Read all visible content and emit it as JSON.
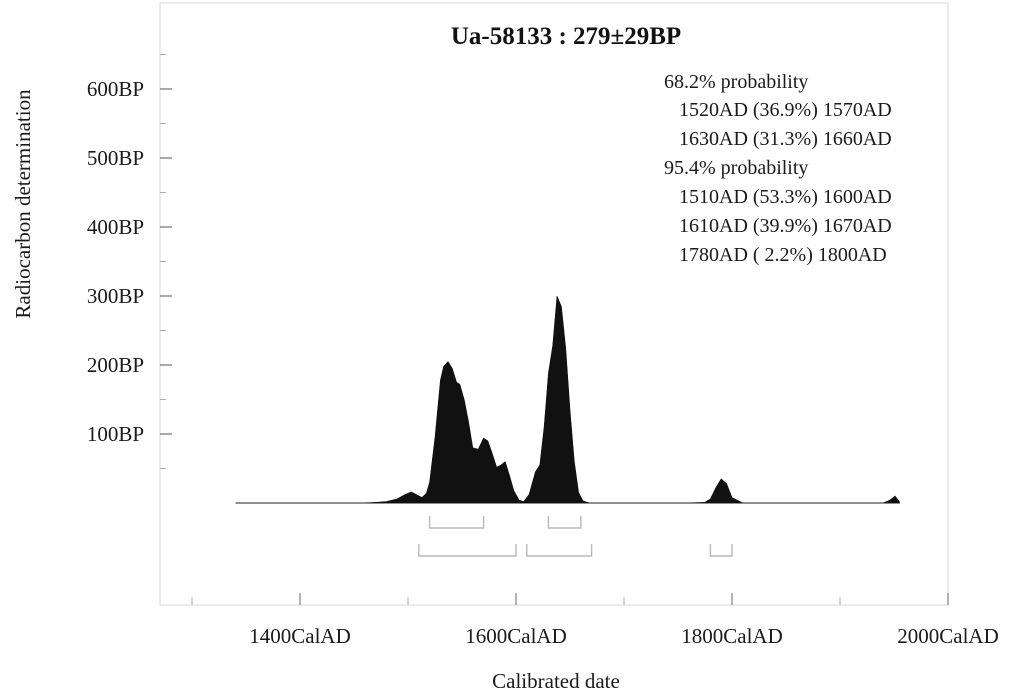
{
  "chart_data": {
    "type": "area",
    "title": "Ua-58133 : 279±29BP",
    "xlabel": "Calibrated date",
    "ylabel": "Radiocarbon determination",
    "x_ticks": [
      {
        "value": 1400,
        "label": "1400CalAD"
      },
      {
        "value": 1600,
        "label": "1600CalAD"
      },
      {
        "value": 1800,
        "label": "1800CalAD"
      },
      {
        "value": 2000,
        "label": "2000CalAD"
      }
    ],
    "y_ticks": [
      {
        "value": 100,
        "label": "100BP"
      },
      {
        "value": 200,
        "label": "200BP"
      },
      {
        "value": 300,
        "label": "300BP"
      },
      {
        "value": 400,
        "label": "400BP"
      },
      {
        "value": 500,
        "label": "500BP"
      },
      {
        "value": 600,
        "label": "600BP"
      }
    ],
    "xlim": [
      1260,
      2040
    ],
    "ylim": [
      -150,
      670
    ],
    "grid": false,
    "probability_text": {
      "group68": {
        "heading": "68.2% probability",
        "ranges": [
          "1520AD (36.9%) 1570AD",
          "1630AD (31.3%) 1660AD"
        ]
      },
      "group95": {
        "heading": "95.4% probability",
        "ranges": [
          "1510AD (53.3%) 1600AD",
          "1610AD (39.9%) 1670AD",
          "1780AD ( 2.2%) 1800AD"
        ]
      }
    },
    "ranges_68": [
      [
        1520,
        1570
      ],
      [
        1630,
        1660
      ]
    ],
    "ranges_95": [
      [
        1510,
        1600
      ],
      [
        1610,
        1670
      ],
      [
        1780,
        1800
      ]
    ],
    "distribution": {
      "x": [
        1340,
        1460,
        1480,
        1490,
        1497,
        1503,
        1508,
        1513,
        1517,
        1520,
        1525,
        1530,
        1533,
        1537,
        1541,
        1545,
        1548,
        1552,
        1556,
        1560,
        1565,
        1570,
        1574,
        1578,
        1582,
        1586,
        1590,
        1594,
        1598,
        1603,
        1607,
        1612,
        1618,
        1622,
        1626,
        1630,
        1634,
        1638,
        1642,
        1646,
        1650,
        1654,
        1658,
        1662,
        1668,
        1672,
        1678,
        1760,
        1775,
        1780,
        1785,
        1790,
        1795,
        1800,
        1810,
        1900,
        1940,
        1946,
        1951,
        1955
      ],
      "y": [
        0,
        0,
        2,
        6,
        12,
        16,
        12,
        8,
        14,
        30,
        95,
        178,
        198,
        205,
        195,
        175,
        172,
        150,
        118,
        80,
        78,
        94,
        90,
        72,
        52,
        55,
        60,
        40,
        18,
        4,
        2,
        12,
        45,
        55,
        110,
        188,
        228,
        300,
        285,
        225,
        135,
        60,
        15,
        3,
        0,
        0,
        0,
        0,
        1,
        6,
        22,
        35,
        28,
        8,
        0,
        0,
        0,
        4,
        10,
        2
      ]
    }
  }
}
